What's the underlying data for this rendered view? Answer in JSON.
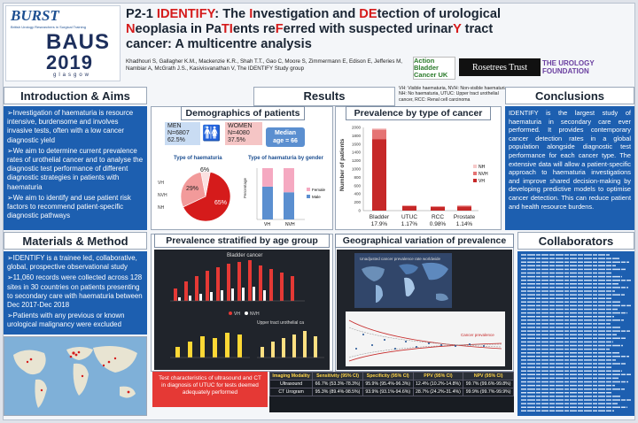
{
  "header": {
    "logo_burst": "BURST",
    "logo_burst_sub": "British Urology Researchers in Surgical Training",
    "logo_baus": "BAUS",
    "logo_year": "2019",
    "logo_city": "glasgow",
    "title_prefix": "P2-1 ",
    "authors": "Khadhouri S, Gallagher K.M., Mackenzie K.R., Shah T.T., Gao C, Moore S, Zimmermann E, Edison E, Jefferies M, Nambiar A, McGrath J.S., Kasivisvanathan V, The IDENTIFY Study group",
    "sponsors": [
      "Action Bladder Cancer UK",
      "Rosetrees Trust",
      "THE UROLOGY FOUNDATION"
    ]
  },
  "intro": {
    "heading": "Introduction & Aims",
    "points": [
      "Investigation of haematuria is resource intensive, burdensome and involves invasive tests, often with a low cancer diagnostic yield",
      "We aim to determine current prevalence rates of urothelial cancer and to analyse the diagnostic test performance of different diagnostic strategies in patients with haematuria",
      "We aim to identify and use patient risk factors to recommend patient-specific diagnostic pathways"
    ]
  },
  "methods": {
    "heading": "Materials & Method",
    "points": [
      "IDENTIFY is a trainee led, collaborative, global, prospective observational study",
      "11,060 records were collected across 128 sites in 30 countries on patients presenting to secondary care with haematuria between Dec 2017-Dec 2018",
      "Patients with any previous or known urological malignancy were excluded"
    ]
  },
  "results": {
    "heading": "Results",
    "abbrev": "VH: Visible haematuria, NVH: Non-visible haematuria, NH: No haematuria, UTUC: Upper tract urothelial cancer, RCC: Renal cell carcinoma",
    "demographics": {
      "title": "Demographics of patients",
      "men_label": "MEN",
      "men_n": "N=6807",
      "men_pct": "62.5%",
      "women_label": "WOMEN",
      "women_n": "N=4080",
      "women_pct": "37.5%",
      "median_label": "Median",
      "median_value": "age = 66",
      "type_title": "Type of haematuria",
      "pie_labels": [
        "VH",
        "NVH",
        "NH"
      ],
      "pie_pcts": [
        "65%",
        "29%",
        "6%"
      ],
      "gender_title": "Type of haematuria by gender",
      "gender_legend": [
        "Female",
        "Male"
      ],
      "gender_ylabel": "Percentage",
      "gender_x": [
        "VH",
        "NVH"
      ]
    },
    "prevalence": {
      "title": "Prevalence by type of cancer",
      "ylabel": "Number of patients",
      "legend": [
        "NH",
        "NVH",
        "VH"
      ],
      "cancers": [
        "Bladder",
        "UTUC",
        "RCC",
        "Prostate"
      ],
      "pcts": [
        "17.9%",
        "1.17%",
        "0.98%",
        "1.14%"
      ]
    },
    "age": {
      "title": "Prevalence stratified by age group",
      "chart1_title": "Bladder cancer",
      "chart2_title": "Upper tract urothelial ca",
      "legend": [
        "VH",
        "NVH"
      ]
    },
    "geo": {
      "title": "Geographical variation of prevalence",
      "inner_title": "Unadjusted cancer prevalence rate worldwide",
      "funnel_label": "Cancer prevalence"
    }
  },
  "test_table": {
    "caption": "Test characteristics of ultrasound and CT in diagnosis of UTUC for tests deemed adequately performed",
    "headers": [
      "Imaging Modality",
      "Sensitivity (95% CI)",
      "Specificity (95% CI)",
      "PPV (95% CI)",
      "NPV (95% CI)"
    ],
    "rows": [
      [
        "Ultrasound",
        "66.7% (53.3%-78.3%)",
        "95.9% (95.4%-96.3%)",
        "12.4% (10.2%-14.8%)",
        "99.7% (99.6%-99.8%)"
      ],
      [
        "CT Urogram",
        "95.3% (89.4%-98.5%)",
        "93.9% (93.1%-94.6%)",
        "28.7% (24.2%-31.4%)",
        "99.9% (99.7%-99.9%)"
      ]
    ]
  },
  "conclusions": {
    "heading": "Conclusions",
    "text": "IDENTIFY is the largest study of haematuria in secondary care ever performed. It provides contemporary cancer detection rates in a global population alongside diagnostic test performance for each cancer type. The extensive data will allow a patient-specific approach to haematuria investigations and improve shared decision-making by developing predictive models to optimise cancer detection. This can reduce patient and health resource burdens."
  },
  "collaborators": {
    "heading": "Collaborators"
  },
  "chart_data": [
    {
      "type": "pie",
      "title": "Type of haematuria",
      "categories": [
        "VH",
        "NVH",
        "NH"
      ],
      "values": [
        65,
        29,
        6
      ]
    },
    {
      "type": "bar",
      "title": "Type of haematuria by gender",
      "categories": [
        "VH",
        "NVH"
      ],
      "series": [
        {
          "name": "Male",
          "values": [
            64,
            53
          ]
        },
        {
          "name": "Female",
          "values": [
            36,
            47
          ]
        }
      ],
      "ylabel": "Percentage",
      "ylim": [
        0,
        100
      ]
    },
    {
      "type": "bar",
      "title": "Prevalence by type of cancer",
      "categories": [
        "Bladder",
        "UTUC",
        "RCC",
        "Prostate"
      ],
      "series": [
        {
          "name": "VH",
          "values": [
            1720,
            110,
            85,
            95
          ]
        },
        {
          "name": "NVH",
          "values": [
            230,
            12,
            18,
            25
          ]
        },
        {
          "name": "NH",
          "values": [
            30,
            2,
            6,
            5
          ]
        }
      ],
      "ylabel": "Number of patients",
      "ylim": [
        0,
        2000
      ]
    }
  ]
}
